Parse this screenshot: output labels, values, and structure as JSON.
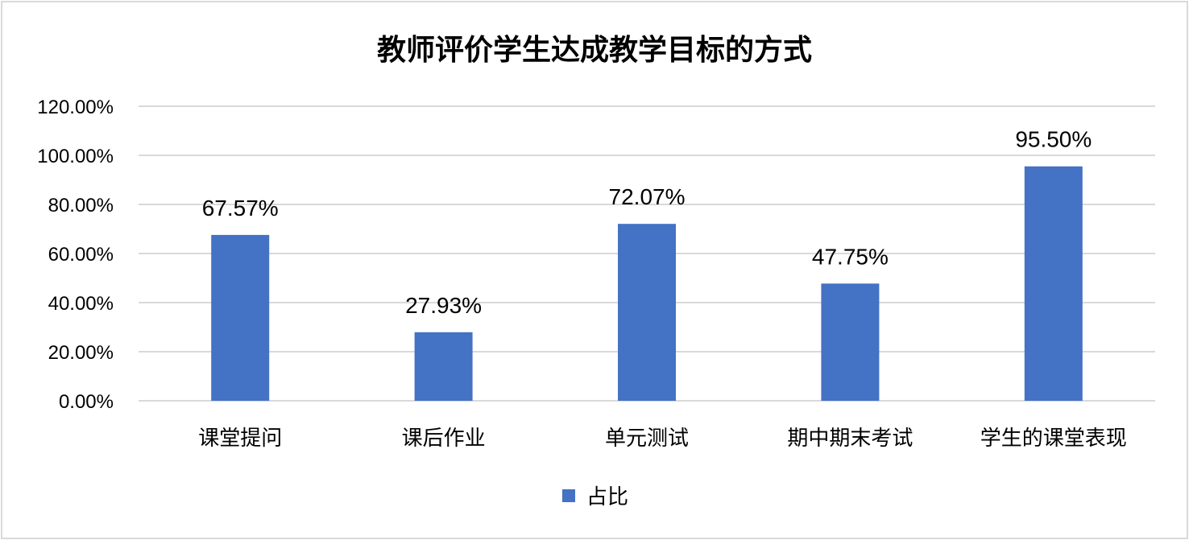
{
  "chart_data": {
    "type": "bar",
    "title": "教师评价学生达成教学目标的方式",
    "categories": [
      "课堂提问",
      "课后作业",
      "单元测试",
      "期中期末考试",
      "学生的课堂表现"
    ],
    "series": [
      {
        "name": "占比",
        "values": [
          67.57,
          27.93,
          72.07,
          47.75,
          95.5
        ],
        "color": "#4472C4"
      }
    ],
    "data_labels": [
      "67.57%",
      "27.93%",
      "72.07%",
      "47.75%",
      "95.50%"
    ],
    "ylim": [
      0,
      120
    ],
    "y_ticks": [
      "0.00%",
      "20.00%",
      "40.00%",
      "60.00%",
      "80.00%",
      "100.00%",
      "120.00%"
    ],
    "y_tick_values": [
      0,
      20,
      40,
      60,
      80,
      100,
      120
    ],
    "grid": true,
    "legend": "bottom"
  }
}
